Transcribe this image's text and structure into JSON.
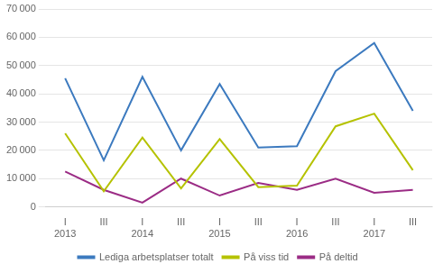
{
  "chart_data": {
    "type": "line",
    "categories": [
      "I",
      "III",
      "I",
      "III",
      "I",
      "III",
      "I",
      "III",
      "I",
      "III"
    ],
    "annotations": [
      {
        "text": "2013",
        "x": 0
      },
      {
        "text": "2014",
        "x": 2
      },
      {
        "text": "2015",
        "x": 4
      },
      {
        "text": "2016",
        "x": 6
      },
      {
        "text": "2017",
        "x": 8
      }
    ],
    "series": [
      {
        "name": "Lediga arbetsplatser totalt",
        "color": "#3c7abf",
        "values": [
          45500,
          16500,
          46000,
          20000,
          43500,
          21000,
          21500,
          48000,
          58000,
          34000
        ]
      },
      {
        "name": "På viss tid",
        "color": "#b5c200",
        "values": [
          26000,
          5500,
          24500,
          6500,
          24000,
          7000,
          7500,
          28500,
          33000,
          13000
        ]
      },
      {
        "name": "På deltid",
        "color": "#9b2c85",
        "values": [
          12500,
          6000,
          1500,
          10000,
          4000,
          8500,
          6000,
          10000,
          5000,
          6000
        ]
      }
    ],
    "ylim": [
      0,
      70000
    ],
    "yticks": [
      0,
      {
        "value": 10000,
        "label": "10 000"
      },
      {
        "value": 20000,
        "label": "20 000"
      },
      {
        "value": 30000,
        "label": "30 000"
      },
      {
        "value": 40000,
        "label": "40 000"
      },
      {
        "value": 50000,
        "label": "50 000"
      },
      {
        "value": 60000,
        "label": "60 000"
      },
      {
        "value": 70000,
        "label": "70 000"
      }
    ],
    "grid": "y",
    "legend": "bottom"
  }
}
